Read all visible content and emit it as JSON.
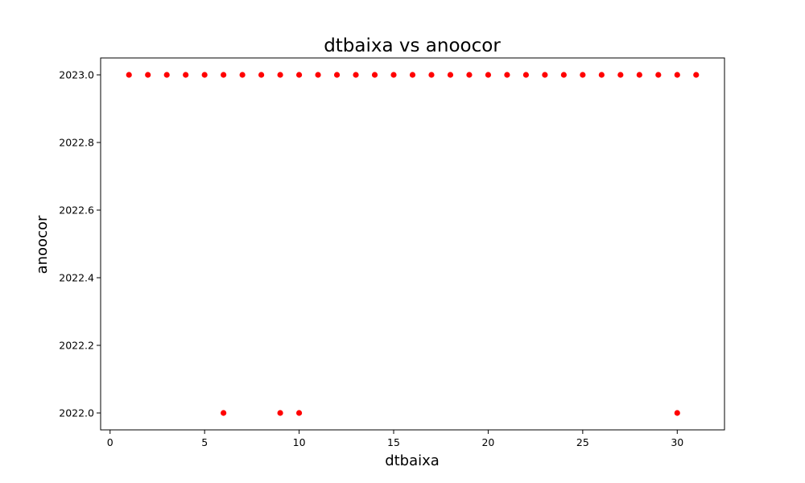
{
  "chart_data": {
    "type": "scatter",
    "title": "dtbaixa vs anoocor",
    "xlabel": "dtbaixa",
    "ylabel": "anoocor",
    "xlim": [
      -0.5,
      32.5
    ],
    "ylim": [
      2021.95,
      2023.05
    ],
    "xticks": [
      0,
      5,
      10,
      15,
      20,
      25,
      30
    ],
    "xtick_labels": [
      "0",
      "5",
      "10",
      "15",
      "20",
      "25",
      "30"
    ],
    "yticks": [
      2022.0,
      2022.2,
      2022.4,
      2022.6,
      2022.8,
      2023.0
    ],
    "ytick_labels": [
      "2022.0",
      "2022.2",
      "2022.4",
      "2022.6",
      "2022.8",
      "2023.0"
    ],
    "grid": false,
    "legend": "none",
    "marker_color": "#ff0000",
    "series": [
      {
        "x": [
          1,
          2,
          3,
          4,
          5,
          6,
          7,
          8,
          9,
          10,
          11,
          12,
          13,
          14,
          15,
          16,
          17,
          18,
          19,
          20,
          21,
          22,
          23,
          24,
          25,
          26,
          27,
          28,
          29,
          30,
          31,
          6,
          9,
          10,
          30
        ],
        "y": [
          2023.0,
          2023.0,
          2023.0,
          2023.0,
          2023.0,
          2023.0,
          2023.0,
          2023.0,
          2023.0,
          2023.0,
          2023.0,
          2023.0,
          2023.0,
          2023.0,
          2023.0,
          2023.0,
          2023.0,
          2023.0,
          2023.0,
          2023.0,
          2023.0,
          2023.0,
          2023.0,
          2023.0,
          2023.0,
          2023.0,
          2023.0,
          2023.0,
          2023.0,
          2023.0,
          2023.0,
          2022.0,
          2022.0,
          2022.0,
          2022.0
        ]
      }
    ]
  }
}
